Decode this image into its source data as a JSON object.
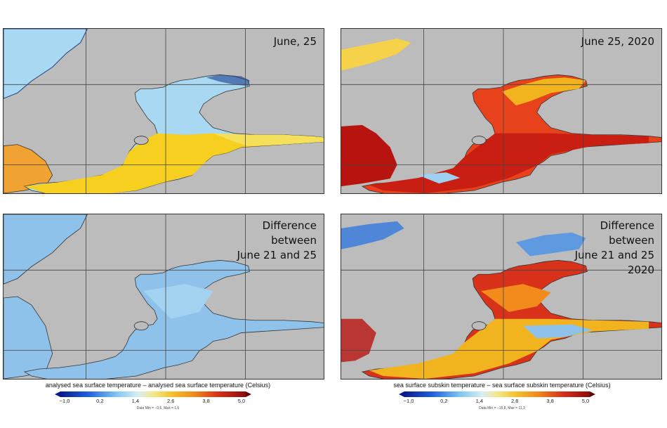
{
  "panels": {
    "top_left": {
      "label_lines": [
        "June, 25"
      ],
      "colormap": "warm-yellow"
    },
    "top_right": {
      "label_lines": [
        "June 25, 2020"
      ],
      "colormap": "hot-red"
    },
    "bottom_left": {
      "label_lines": [
        "Difference",
        "between",
        "June 21 and 25"
      ],
      "colormap": "light-blue"
    },
    "bottom_right": {
      "label_lines": [
        "Difference",
        "between",
        "June 21 and 25",
        "2020"
      ],
      "colormap": "mixed-red-blue"
    }
  },
  "legends": {
    "left": {
      "title": "analysed sea surface temperature – analysed sea surface temperature (Celsius)",
      "ticks": [
        "−1,0",
        "0,2",
        "1,4",
        "2,6",
        "3,8",
        "5,0"
      ],
      "range_text": "Data Min = −0,6, Max = 1,6"
    },
    "right": {
      "title": "sea surface subskin temperature – sea surface subskin temperature (Celsius)",
      "ticks": [
        "−1,0",
        "0,2",
        "1,4",
        "2,6",
        "3,8",
        "5,0"
      ],
      "range_text": "Data Min = −15,8, Max = 11,3"
    }
  },
  "colors": {
    "land": "#bcbcbc",
    "grid": "#444444",
    "coast": "#333333"
  }
}
